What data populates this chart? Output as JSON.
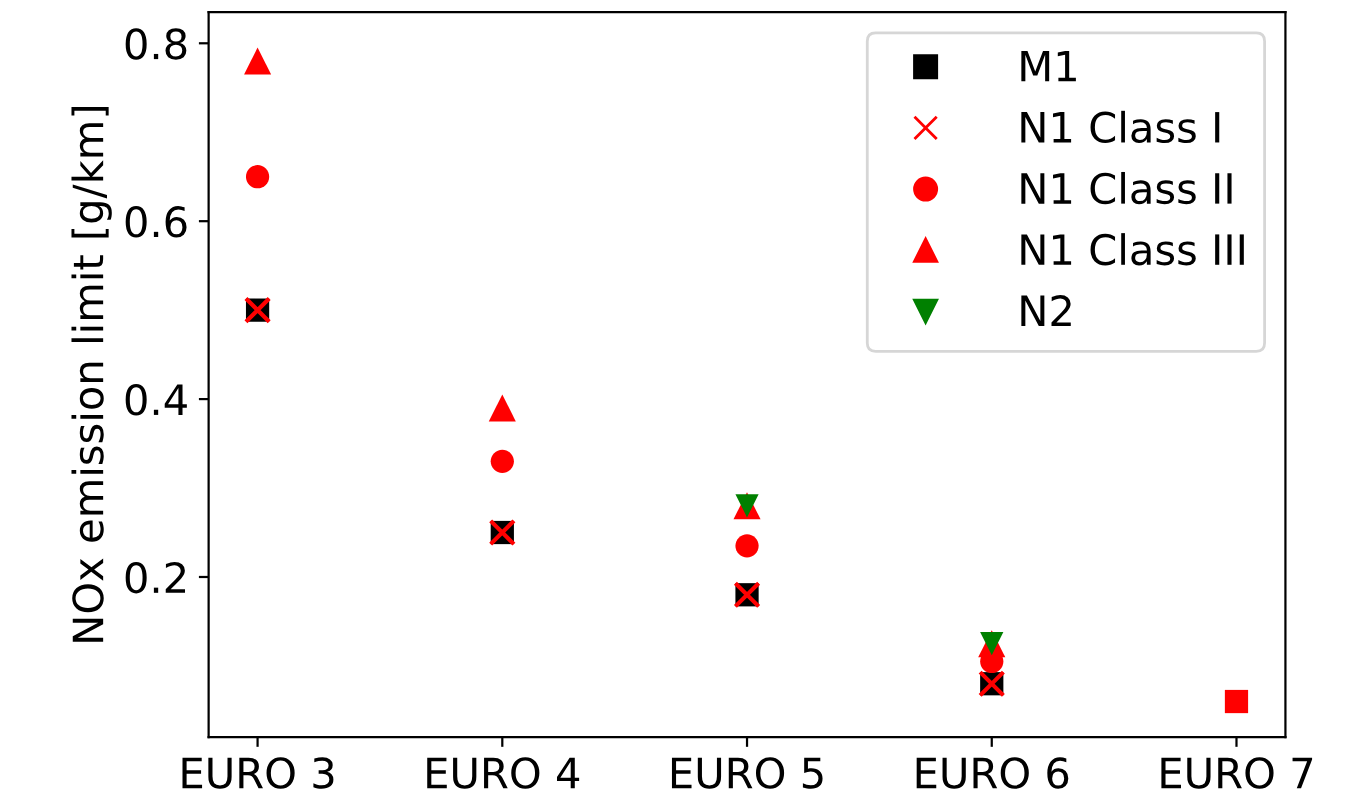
{
  "chart_data": {
    "type": "scatter",
    "ylabel": "NOx emission limit [g/km]",
    "categories": [
      "EURO 3",
      "EURO 4",
      "EURO 5",
      "EURO 6",
      "EURO 7"
    ],
    "series": [
      {
        "name": "M1",
        "color": "#000000",
        "marker": "square",
        "values": [
          0.5,
          0.25,
          0.18,
          0.08,
          0.06
        ],
        "colors": [
          "#000000",
          "#000000",
          "#000000",
          "#000000",
          "#ff0000"
        ]
      },
      {
        "name": "N1 Class I",
        "color": "#ff0000",
        "marker": "cross",
        "values": [
          0.5,
          0.25,
          0.18,
          0.08,
          null
        ]
      },
      {
        "name": "N1 Class II",
        "color": "#ff0000",
        "marker": "circle",
        "values": [
          0.65,
          0.33,
          0.235,
          0.105,
          null
        ]
      },
      {
        "name": "N1 Class III",
        "color": "#ff0000",
        "marker": "triangle",
        "values": [
          0.78,
          0.39,
          0.28,
          0.125,
          null
        ]
      },
      {
        "name": "N2",
        "color": "#008000",
        "marker": "triangle_down",
        "values": [
          null,
          null,
          0.28,
          0.125,
          null
        ]
      }
    ],
    "ylim": [
      0.02,
      0.835
    ],
    "yticks": [
      0.2,
      0.4,
      0.6,
      0.8
    ],
    "grid": false,
    "legend": "top right"
  }
}
